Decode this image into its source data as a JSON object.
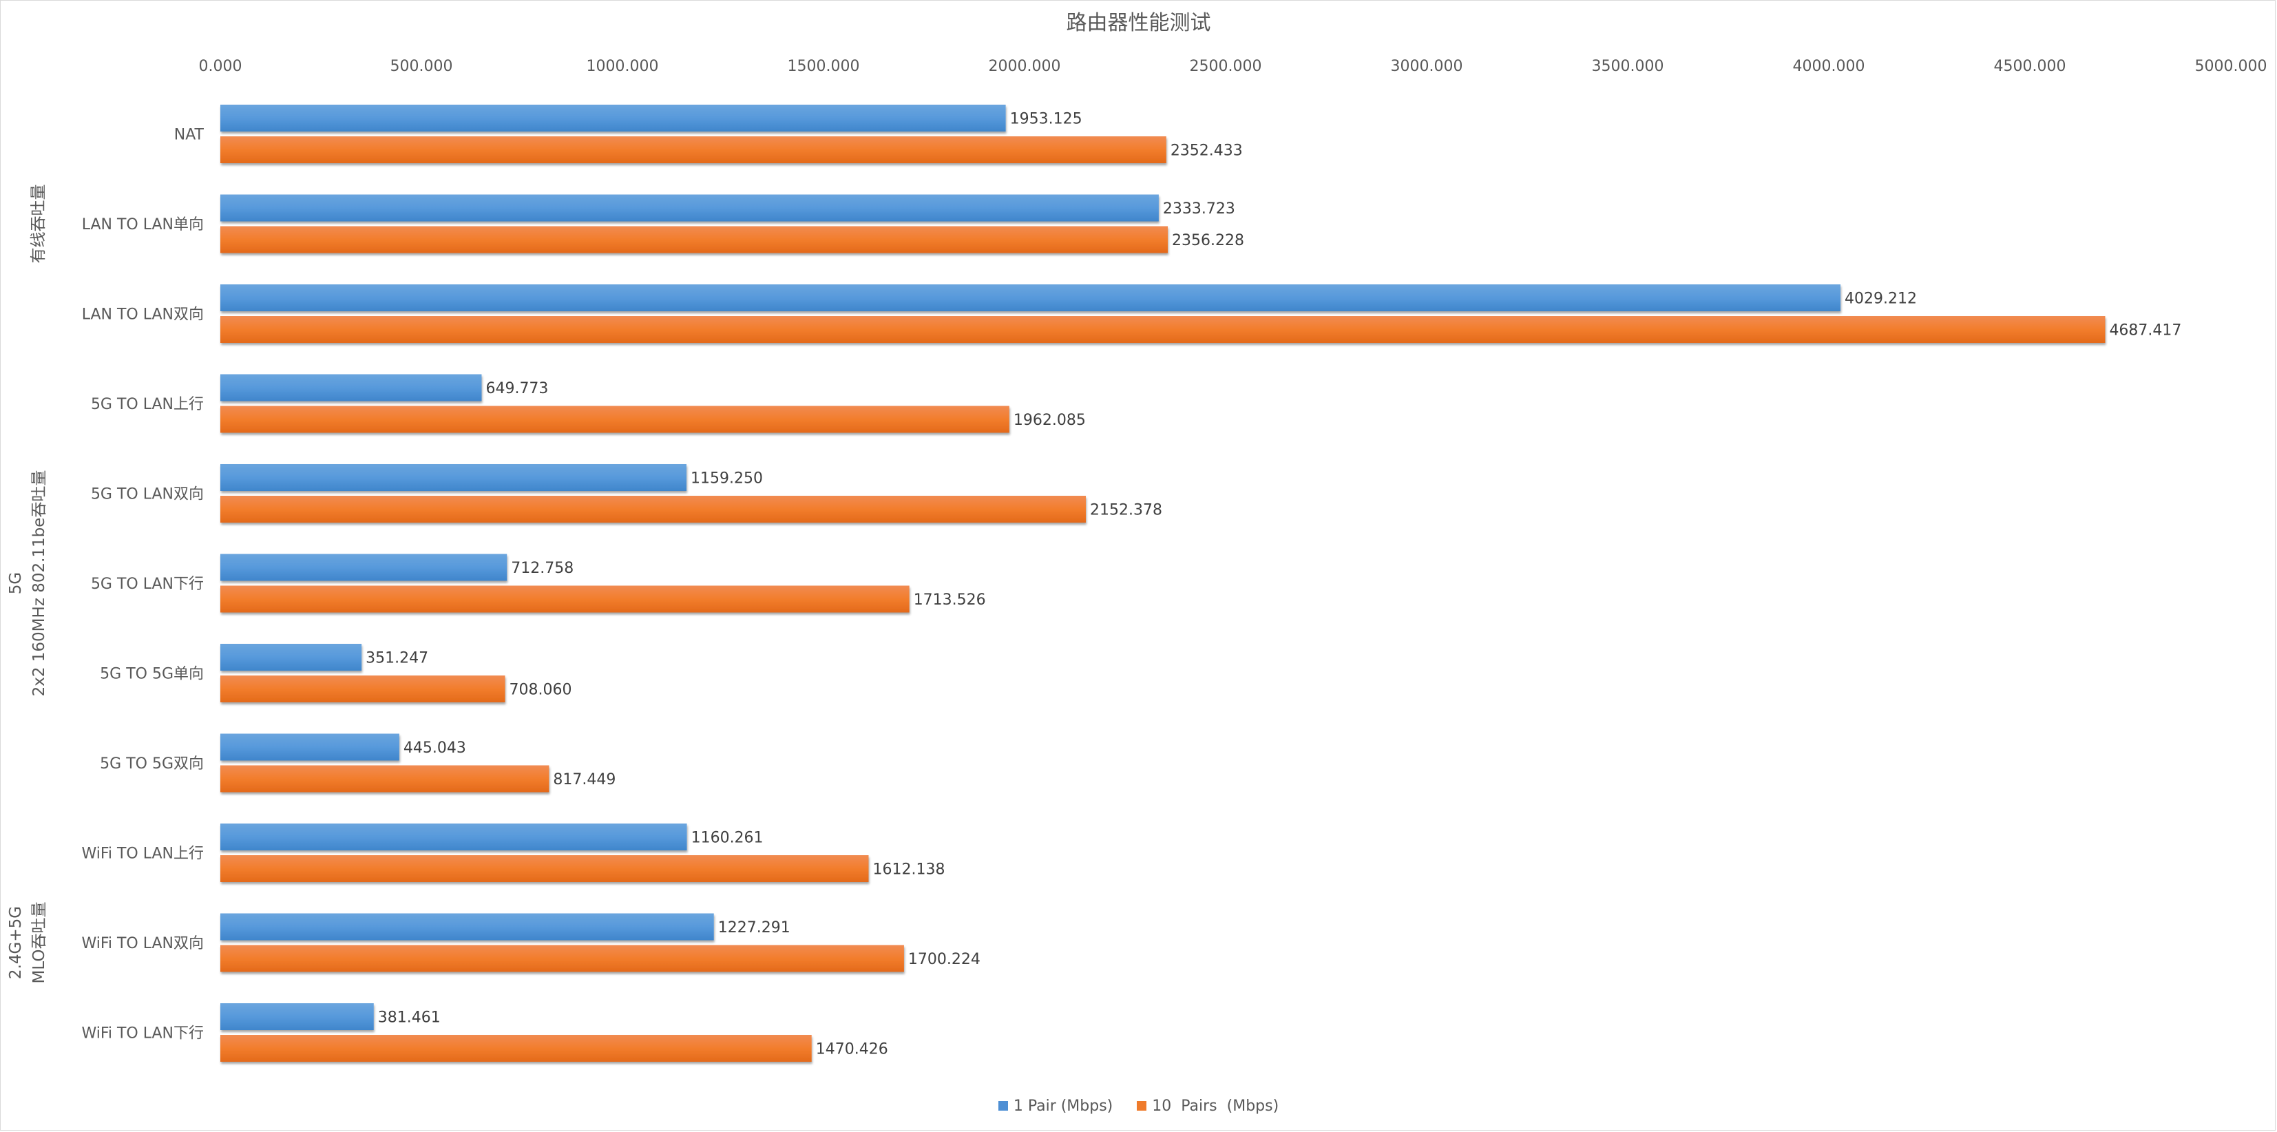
{
  "chart_data": {
    "type": "bar",
    "orientation": "horizontal",
    "title": "路由器性能测试",
    "xlabel": "",
    "ylabel": "",
    "xlim": [
      0,
      5000
    ],
    "x_ticks": [
      "0.000",
      "500.000",
      "1000.000",
      "1500.000",
      "2000.000",
      "2500.000",
      "3000.000",
      "3500.000",
      "4000.000",
      "4500.000",
      "5000.000"
    ],
    "x_tick_values": [
      0,
      500,
      1000,
      1500,
      2000,
      2500,
      3000,
      3500,
      4000,
      4500,
      5000
    ],
    "grid": false,
    "legend_position": "bottom",
    "categories": [
      "NAT",
      "LAN TO LAN单向",
      "LAN TO LAN双向",
      "5G TO LAN上行",
      "5G TO LAN双向",
      "5G TO LAN下行",
      "5G TO 5G单向",
      "5G TO 5G双向",
      "WiFi TO LAN上行",
      "WiFi TO LAN双向",
      "WiFi TO LAN下行"
    ],
    "groups": [
      {
        "lines": [
          "有线吞吐量"
        ],
        "start": 0,
        "end": 2
      },
      {
        "lines": [
          "5G",
          "2x2 160MHz 802.11be吞吐量"
        ],
        "start": 3,
        "end": 7
      },
      {
        "lines": [
          "2.4G+5G",
          "MLO吞吐量"
        ],
        "start": 8,
        "end": 10
      }
    ],
    "series": [
      {
        "name": "1 Pair (Mbps)",
        "color": "#4e8fd4",
        "values": [
          1953.125,
          2333.723,
          4029.212,
          649.773,
          1159.25,
          712.758,
          351.247,
          445.043,
          1160.261,
          1227.291,
          381.461
        ],
        "labels": [
          "1953.125",
          "2333.723",
          "4029.212",
          "649.773",
          "1159.250",
          "712.758",
          "351.247",
          "445.043",
          "1160.261",
          "1227.291",
          "381.461"
        ]
      },
      {
        "name": "10  Pairs  (Mbps)",
        "color": "#ef7b2b",
        "values": [
          2352.433,
          2356.228,
          4687.417,
          1962.085,
          2152.378,
          1713.526,
          708.06,
          817.449,
          1612.138,
          1700.224,
          1470.426
        ],
        "labels": [
          "2352.433",
          "2356.228",
          "4687.417",
          "1962.085",
          "2152.378",
          "1713.526",
          "708.060",
          "817.449",
          "1612.138",
          "1700.224",
          "1470.426"
        ]
      }
    ]
  }
}
